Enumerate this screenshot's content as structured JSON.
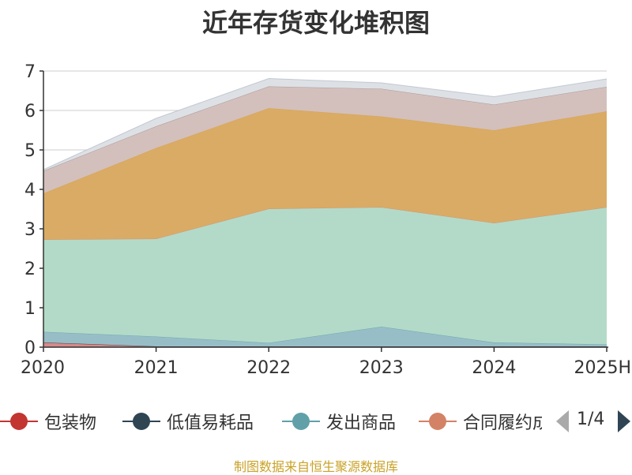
{
  "title": "近年存货变化堆积图",
  "source_note": "制图数据来自恒生聚源数据库",
  "legend_pager": "1/4",
  "chart_data": {
    "type": "area",
    "stacked": true,
    "title": "近年存货变化堆积图",
    "xlabel": "",
    "ylabel": "",
    "ylim": [
      0,
      7
    ],
    "yticks": [
      0,
      1,
      2,
      3,
      4,
      5,
      6,
      7
    ],
    "grid": true,
    "legend_position": "bottom",
    "categories": [
      "2020",
      "2021",
      "2022",
      "2023",
      "2024",
      "2025H"
    ],
    "series": [
      {
        "name": "包装物",
        "color": "#c23531",
        "fill": "#d78a88",
        "values": [
          0.12,
          0.02,
          0.02,
          0.02,
          0.02,
          0.02
        ]
      },
      {
        "name": "低值易耗品",
        "color": "#2f4554",
        "fill": "#2f4554",
        "values": [
          0.0,
          0.0,
          0.0,
          0.0,
          0.0,
          0.0
        ]
      },
      {
        "name": "发出商品",
        "color": "#61a0a8",
        "fill": "#97bec7",
        "values": [
          0.27,
          0.25,
          0.09,
          0.5,
          0.1,
          0.05
        ]
      },
      {
        "name": "合同履约成本",
        "color": "#d48265",
        "fill": "#b3dac8",
        "values": [
          2.34,
          2.48,
          3.4,
          3.03,
          3.03,
          3.48
        ]
      },
      {
        "name": "",
        "color": "#d6a35c",
        "fill": "#daab64",
        "values": [
          1.17,
          2.3,
          2.55,
          2.3,
          2.35,
          2.43
        ]
      },
      {
        "name": "",
        "color": "#a08d8d",
        "fill": "#d3c0bc",
        "values": [
          0.57,
          0.55,
          0.55,
          0.7,
          0.65,
          0.62
        ]
      },
      {
        "name": "",
        "color": "#b8bfc9",
        "fill": "#dde1e6",
        "values": [
          0.03,
          0.2,
          0.2,
          0.15,
          0.2,
          0.2
        ]
      }
    ]
  }
}
